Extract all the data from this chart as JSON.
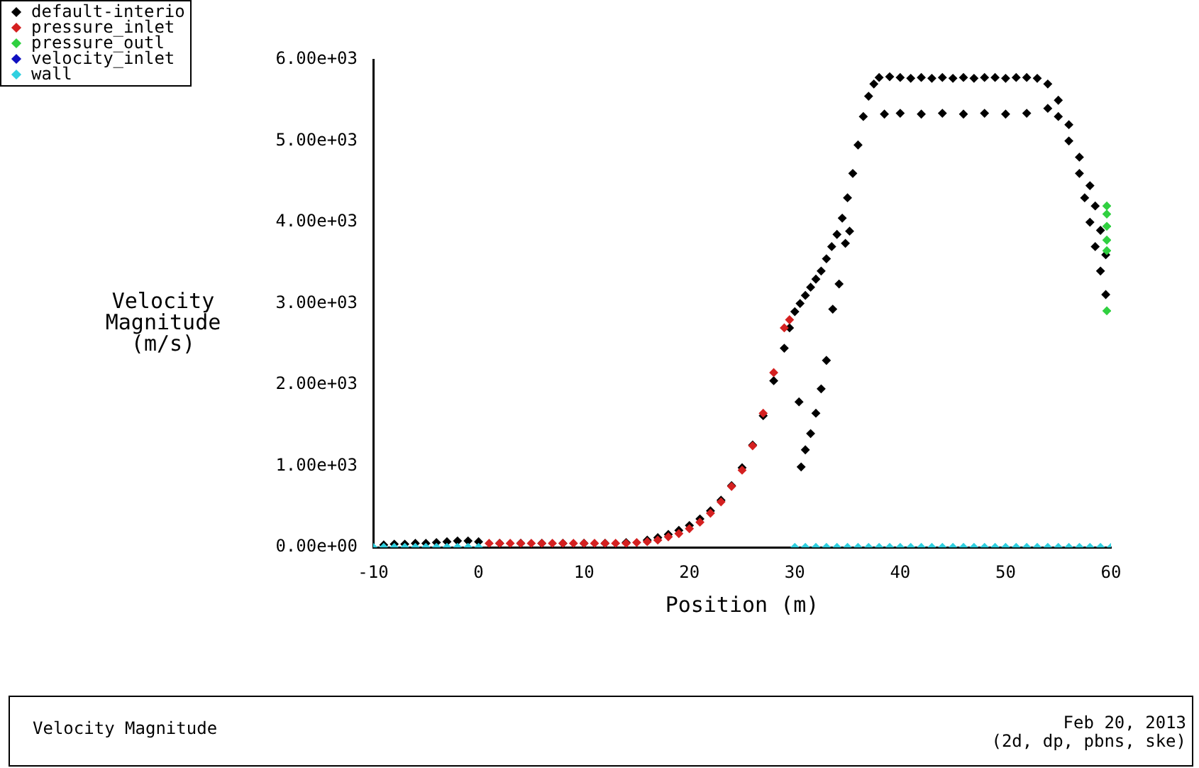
{
  "chart_data": {
    "type": "scatter",
    "xlabel": "Position (m)",
    "ylabel": "Velocity Magnitude (m/s)",
    "xlim": [
      -10,
      60
    ],
    "xticks": [
      -10,
      0,
      10,
      20,
      30,
      40,
      50,
      60
    ],
    "ylim": [
      0,
      6000
    ],
    "yticks": [
      {
        "value": 0,
        "label": "0.00e+00"
      },
      {
        "value": 1000,
        "label": "1.00e+03"
      },
      {
        "value": 2000,
        "label": "2.00e+03"
      },
      {
        "value": 3000,
        "label": "3.00e+03"
      },
      {
        "value": 4000,
        "label": "4.00e+03"
      },
      {
        "value": 5000,
        "label": "5.00e+03"
      },
      {
        "value": 6000,
        "label": "6.00e+03"
      }
    ],
    "grid": false,
    "legend": "top left",
    "marker": "diamond",
    "annotations": [
      "Velocity Magnitude",
      "Feb 20, 2013",
      "(2d, dp, pbns, ske)"
    ],
    "series": [
      {
        "name": "default-interio",
        "color": "#000000",
        "x": [
          -9,
          -8,
          -7,
          -6,
          -5,
          -4,
          -3,
          -2,
          -1,
          0,
          2,
          4,
          6,
          8,
          10,
          12,
          14,
          16,
          17,
          18,
          19,
          20,
          21,
          22,
          23,
          24,
          25,
          26,
          27,
          28,
          29,
          29.5,
          30,
          30.5,
          31,
          31.5,
          32,
          32.5,
          33,
          33.5,
          34,
          34.5,
          35,
          35.5,
          36,
          36.5,
          37,
          37.5,
          38,
          39,
          40,
          41,
          42,
          43,
          44,
          45,
          46,
          47,
          48,
          49,
          50,
          51,
          52,
          53,
          54,
          55,
          56,
          57,
          58,
          58.5,
          59,
          59.5,
          38.5,
          40,
          42,
          44,
          46,
          48,
          50,
          52,
          54,
          55,
          56,
          57,
          57.5,
          58,
          58.5,
          59,
          59.5,
          30.4,
          30.6,
          31,
          31.5,
          32,
          32.5,
          33,
          33.6,
          34.2,
          34.8,
          35.2
        ],
        "values": [
          30,
          40,
          40,
          50,
          50,
          60,
          70,
          80,
          80,
          70,
          50,
          50,
          50,
          50,
          50,
          50,
          60,
          90,
          120,
          160,
          210,
          270,
          350,
          450,
          580,
          760,
          980,
          1260,
          1620,
          2050,
          2450,
          2700,
          2900,
          3000,
          3100,
          3200,
          3300,
          3400,
          3550,
          3700,
          3850,
          4050,
          4300,
          4600,
          4950,
          5300,
          5550,
          5700,
          5780,
          5790,
          5780,
          5770,
          5780,
          5770,
          5780,
          5770,
          5780,
          5770,
          5780,
          5780,
          5770,
          5780,
          5780,
          5770,
          5700,
          5500,
          5200,
          4800,
          4450,
          4200,
          3900,
          3600,
          5330,
          5340,
          5330,
          5340,
          5330,
          5340,
          5330,
          5340,
          5400,
          5300,
          5000,
          4600,
          4300,
          4000,
          3700,
          3400,
          3110,
          1790,
          990,
          1200,
          1400,
          1650,
          1950,
          2300,
          2930,
          3240,
          3740,
          3890
        ]
      },
      {
        "name": "pressure_inlet",
        "color": "#d42020",
        "x": [
          1,
          2,
          3,
          4,
          5,
          6,
          7,
          8,
          9,
          10,
          11,
          12,
          13,
          14,
          15,
          16,
          17,
          18,
          19,
          20,
          21,
          22,
          23,
          24,
          25,
          26,
          27,
          28,
          29,
          29.5
        ],
        "values": [
          50,
          50,
          50,
          50,
          50,
          50,
          50,
          50,
          50,
          50,
          50,
          50,
          50,
          50,
          60,
          70,
          90,
          130,
          170,
          230,
          310,
          420,
          560,
          750,
          950,
          1250,
          1650,
          2150,
          2700,
          2800
        ]
      },
      {
        "name": "pressure_outl",
        "color": "#30d040",
        "x": [
          59.6,
          59.6,
          59.6,
          59.6,
          59.6,
          59.6
        ],
        "values": [
          4200,
          4100,
          3950,
          3780,
          3650,
          2910
        ]
      },
      {
        "name": "velocity_inlet",
        "color": "#1010c0"
      },
      {
        "name": "wall",
        "color": "#30d0e0",
        "x": [
          -10,
          -9,
          -8,
          -7,
          -6,
          -5,
          -4,
          -3,
          -2,
          -1,
          0,
          30,
          31,
          32,
          33,
          34,
          35,
          36,
          37,
          38,
          39,
          40,
          41,
          42,
          43,
          44,
          45,
          46,
          47,
          48,
          49,
          50,
          51,
          52,
          53,
          54,
          55,
          56,
          57,
          58,
          59,
          60
        ],
        "values": [
          0,
          0,
          0,
          0,
          0,
          0,
          0,
          0,
          0,
          0,
          0,
          0,
          0,
          0,
          0,
          0,
          0,
          0,
          0,
          0,
          0,
          0,
          0,
          0,
          0,
          0,
          0,
          0,
          0,
          0,
          0,
          0,
          0,
          0,
          0,
          0,
          0,
          0,
          0,
          0,
          0,
          0
        ]
      }
    ]
  }
}
